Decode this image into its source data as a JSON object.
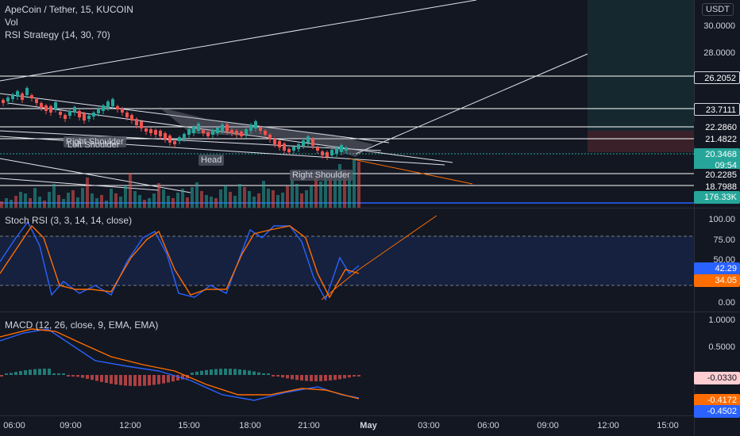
{
  "header": {
    "symbol_title": "ApeCoin / Tether, 15, KUCOIN",
    "vol_label": "Vol",
    "strategy_label": "RSI Strategy (14, 30, 70)",
    "currency_badge": "USDT"
  },
  "price_axis": {
    "labels": [
      "30.0000",
      "28.0000"
    ],
    "levels": [
      "26.2052",
      "23.7111",
      "22.2860",
      "21.4822",
      "20.2285",
      "18.7988"
    ],
    "last_price": "20.3468",
    "countdown": "09:54",
    "volume": "176.33K"
  },
  "pattern_labels": {
    "right_shoulder_top": "Right Shoulder",
    "left_shoulder": "Left Shoulder",
    "head": "Head",
    "right_shoulder": "Right Shoulder"
  },
  "stoch_rsi": {
    "title": "Stoch RSI (3, 3, 14, 14, close)",
    "axis": [
      "100.00",
      "75.00",
      "50.00",
      "0.00"
    ],
    "k_value": "42.29",
    "d_value": "34.05"
  },
  "macd": {
    "title": "MACD (12, 26, close, 9, EMA, EMA)",
    "axis": [
      "1.0000",
      "0.5000"
    ],
    "hist_value": "-0.0330",
    "signal_value": "-0.4172",
    "macd_value": "-0.4502"
  },
  "time_axis": [
    "06:00",
    "09:00",
    "12:00",
    "15:00",
    "18:00",
    "21:00",
    "May",
    "03:00",
    "06:00",
    "09:00",
    "12:00",
    "15:00"
  ],
  "colors": {
    "background": "#131722",
    "up": "#26a69a",
    "down": "#ef5350",
    "stoch_k": "#2962ff",
    "stoch_d": "#ff6d00",
    "macd_line": "#2962ff",
    "signal_line": "#ff6d00"
  }
}
